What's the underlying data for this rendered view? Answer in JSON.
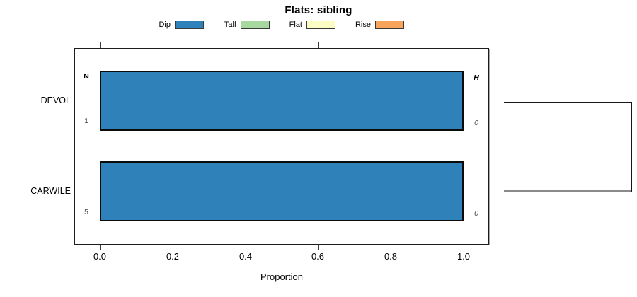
{
  "title": "Flats: sibling",
  "axis": {
    "label": "Proportion",
    "tick_labels": [
      "0.0",
      "0.2",
      "0.4",
      "0.6",
      "0.8",
      "1.0"
    ]
  },
  "rows": [
    {
      "label": "DEVOL"
    },
    {
      "label": "CARWILE"
    }
  ],
  "chart_data": {
    "type": "bar",
    "orientation": "horizontal",
    "title": "Flats: sibling",
    "xlabel": "Proportion",
    "xlim": [
      0,
      1
    ],
    "xticks": [
      0.0,
      0.2,
      0.4,
      0.6,
      0.8,
      1.0
    ],
    "categories": [
      "DEVOL",
      "CARWILE"
    ],
    "series": [
      {
        "name": "Dip",
        "color": "#2e81b9",
        "values": [
          1.0,
          1.0
        ]
      },
      {
        "name": "Talf",
        "color": "#a6d8a0",
        "values": [
          0,
          0
        ]
      },
      {
        "name": "Flat",
        "color": "#fcfcc5",
        "values": [
          0,
          0
        ]
      },
      {
        "name": "Rise",
        "color": "#f8a45a",
        "values": [
          0,
          0
        ]
      }
    ],
    "row_annotations": [
      {
        "left_top": "N",
        "left_bottom": "1",
        "right_top": "H",
        "right_bottom": "0"
      },
      {
        "left_top": "",
        "left_bottom": "5",
        "right_top": "",
        "right_bottom": "0"
      }
    ],
    "legend_position": "top",
    "grid": false,
    "annotation_note": "right-side bracket joins DEVOL and CARWILE rows"
  }
}
